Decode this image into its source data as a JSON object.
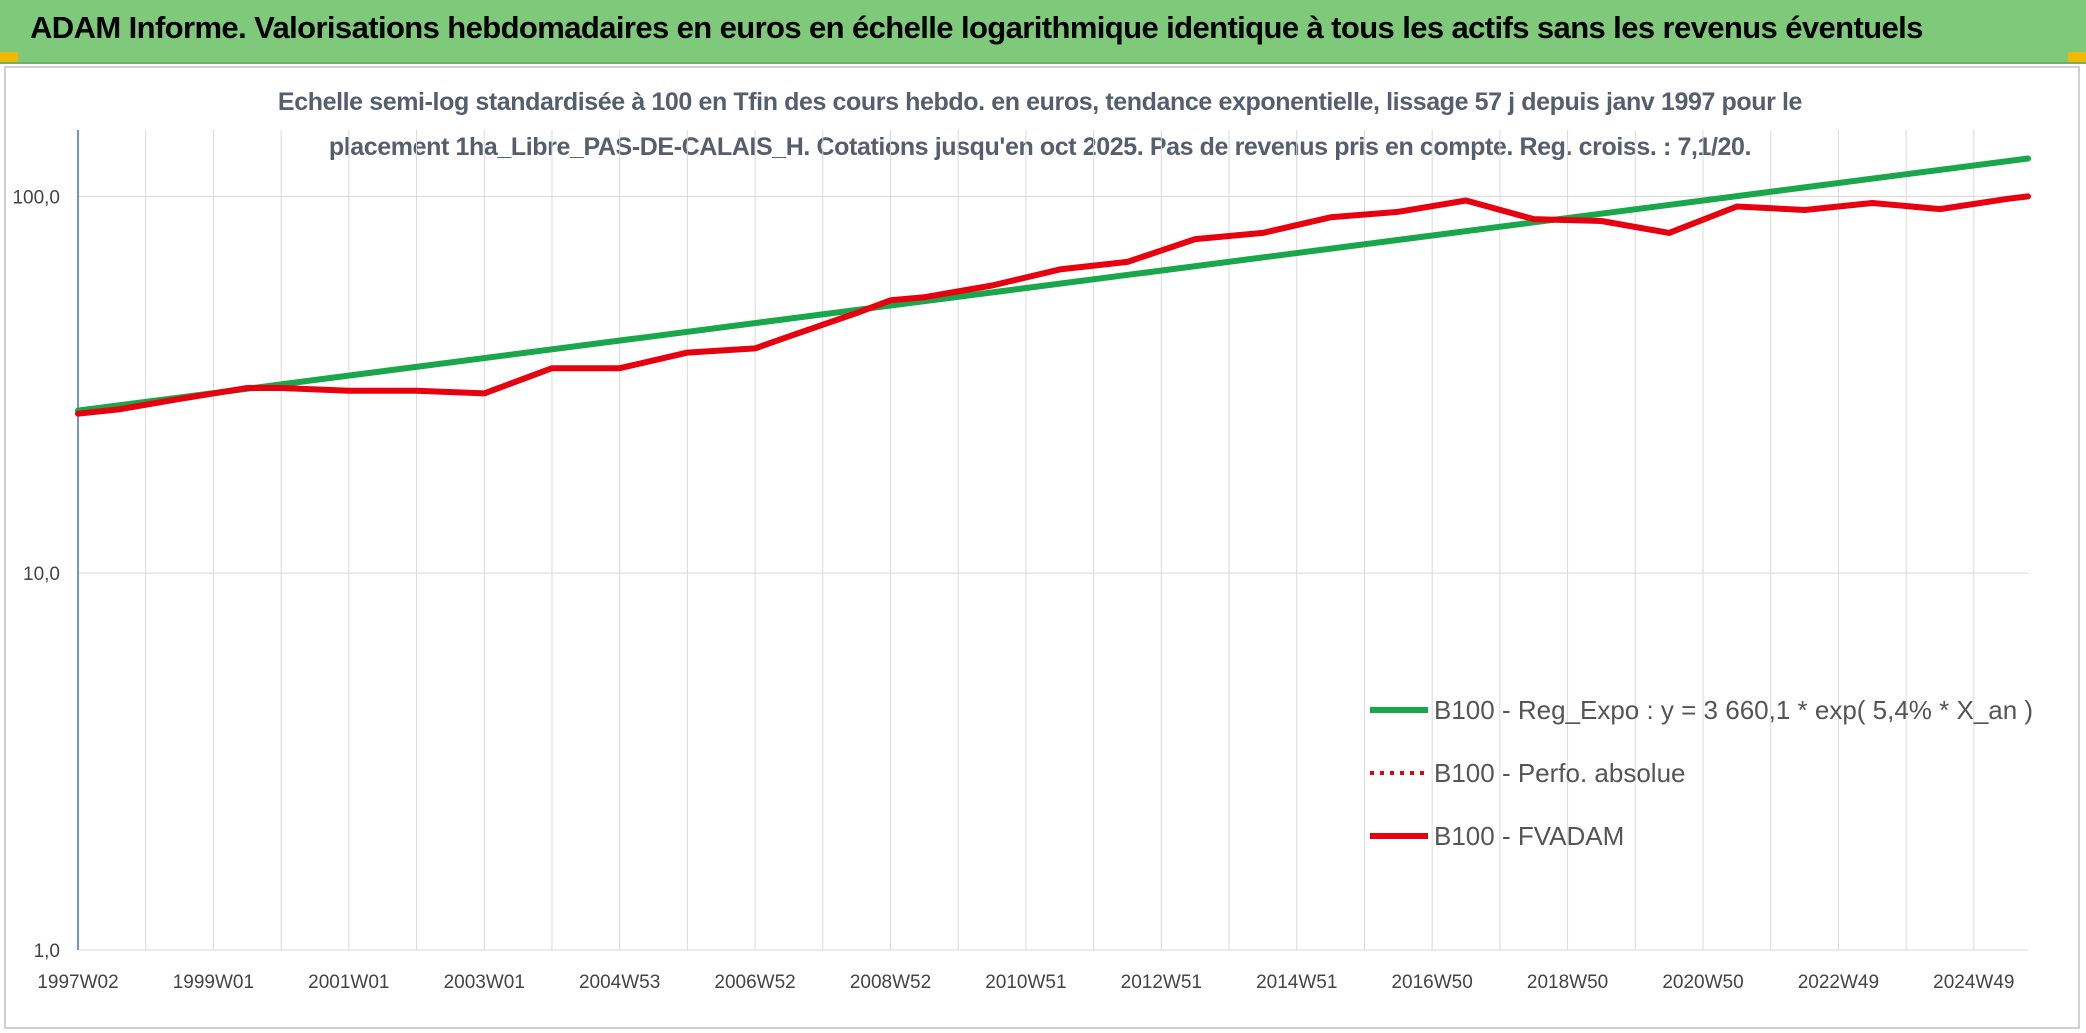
{
  "header": {
    "title": "ADAM Informe. Valorisations hebdomadaires en euros en échelle logarithmique identique à tous les actifs sans les revenus éventuels"
  },
  "chart_data": {
    "type": "line",
    "title_line1": "Echelle semi-log standardisée à 100 en Tfin des cours hebdo. en euros, tendance exponentielle, lissage 57 j depuis janv 1997 pour le",
    "title_line2": "placement 1ha_Libre_PAS-DE-CALAIS_H. Cotations jusqu'en oct 2025. Pas de revenus pris en compte. Reg. croiss. : 7,1/20.",
    "yscale": "log",
    "ylim": [
      1,
      150
    ],
    "y_ticks": [
      {
        "value": 1,
        "label": "1,0"
      },
      {
        "value": 10,
        "label": "10,0"
      },
      {
        "value": 100,
        "label": "100,0"
      }
    ],
    "xlim": [
      1997.0,
      2025.8
    ],
    "x_ticks": [
      {
        "pos": 1997.0,
        "label": "1997W02"
      },
      {
        "pos": 1999.0,
        "label": "1999W01"
      },
      {
        "pos": 2001.0,
        "label": "2001W01"
      },
      {
        "pos": 2003.0,
        "label": "2003W01"
      },
      {
        "pos": 2005.0,
        "label": "2004W53"
      },
      {
        "pos": 2007.0,
        "label": "2006W52"
      },
      {
        "pos": 2009.0,
        "label": "2008W52"
      },
      {
        "pos": 2011.0,
        "label": "2010W51"
      },
      {
        "pos": 2013.0,
        "label": "2012W51"
      },
      {
        "pos": 2015.0,
        "label": "2014W51"
      },
      {
        "pos": 2017.0,
        "label": "2016W50"
      },
      {
        "pos": 2019.0,
        "label": "2018W50"
      },
      {
        "pos": 2021.0,
        "label": "2020W50"
      },
      {
        "pos": 2023.0,
        "label": "2022W49"
      },
      {
        "pos": 2025.0,
        "label": "2024W49"
      }
    ],
    "grid_x_step": 1,
    "legend_position": "bottom-right",
    "series": [
      {
        "name": "B100 - Reg_Expo : y = 3 660,1 * exp( 5,4% *  X_an )",
        "color": "#1aa64a",
        "style": "solid",
        "x": [
          1997.0,
          2025.8
        ],
        "y": [
          27,
          126
        ]
      },
      {
        "name": "B100 - Perfo. absolue",
        "color": "#e8000f",
        "style": "dotted",
        "x": [],
        "y": []
      },
      {
        "name": "B100 - FVADAM",
        "color": "#e8000f",
        "style": "solid",
        "x": [
          1997.0,
          1997.6,
          1998.5,
          1999.0,
          1999.5,
          2000.0,
          2001.0,
          2002.0,
          2003.0,
          2004.0,
          2005.0,
          2006.0,
          2007.0,
          2007.5,
          2008.5,
          2009.0,
          2009.5,
          2010.5,
          2011.5,
          2012.5,
          2013.5,
          2014.5,
          2015.5,
          2016.5,
          2017.5,
          2018.5,
          2019.5,
          2020.5,
          2021.5,
          2022.5,
          2023.5,
          2024.5,
          2025.5,
          2025.8
        ],
        "y": [
          26.5,
          27.2,
          29.0,
          30.0,
          31.0,
          31.0,
          30.5,
          30.5,
          30.0,
          35.0,
          35.0,
          38.5,
          39.5,
          42.5,
          49.0,
          53.0,
          54.0,
          58.0,
          64.0,
          67.0,
          77.0,
          80.0,
          88.0,
          91.0,
          97.5,
          87.0,
          86.0,
          80.0,
          94.0,
          92.0,
          96.0,
          92.5,
          98.5,
          100.0
        ]
      }
    ]
  },
  "legend": {
    "entries": [
      {
        "label": "B100 - Reg_Expo : y = 3 660,1 * exp( 5,4% *  X_an )",
        "color": "#1aa64a",
        "style": "solid"
      },
      {
        "label": "B100 - Perfo. absolue",
        "color": "#e8000f",
        "style": "dotted"
      },
      {
        "label": "B100 - FVADAM",
        "color": "#e8000f",
        "style": "solid"
      }
    ]
  },
  "colors": {
    "header_bg": "#7fc97a",
    "corner": "#f0b800",
    "axis": "#4472c4",
    "grid": "#d9d9d9"
  }
}
